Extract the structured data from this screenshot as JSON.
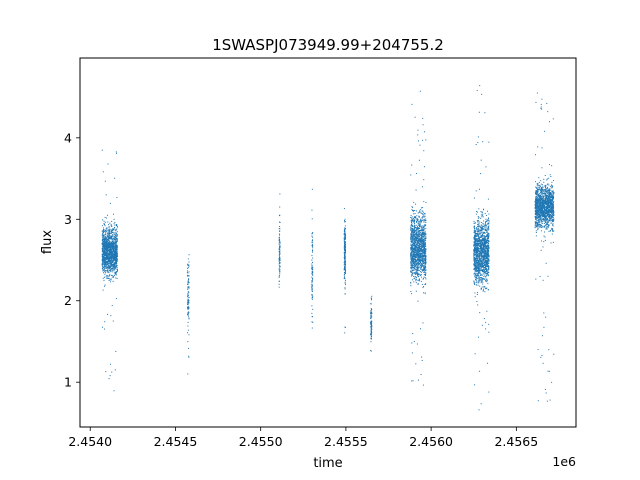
{
  "chart_data": {
    "type": "scatter",
    "title": "1SWASPJ073949.99+204755.2",
    "xlabel": "time",
    "ylabel": "flux",
    "x_offset_label": "1e6",
    "x_ticks": [
      "2.4540",
      "2.4545",
      "2.4550",
      "2.4555",
      "2.4560",
      "2.4565"
    ],
    "y_ticks": [
      "1",
      "2",
      "3",
      "4"
    ],
    "x_tick_values": [
      2454000,
      2454500,
      2455000,
      2455500,
      2456000,
      2456500
    ],
    "y_tick_values": [
      1,
      2,
      3,
      4
    ],
    "xlim": [
      2453940,
      2456850
    ],
    "ylim": [
      0.45,
      4.98
    ],
    "grid": false,
    "legend": "none",
    "point_color": "#1f77b4",
    "series": [
      {
        "clusters": [
          {
            "x_range": [
              2454070,
              2454160
            ],
            "y_center": 2.6,
            "y_spread": 0.25,
            "y_min": 0.85,
            "y_max": 3.95,
            "density": "high"
          },
          {
            "x_range": [
              2454570,
              2454580
            ],
            "y_center": 2.1,
            "y_spread": 0.4,
            "y_min": 1.1,
            "y_max": 2.8,
            "density": "low"
          },
          {
            "x_range": [
              2455108,
              2455114
            ],
            "y_center": 2.6,
            "y_spread": 0.35,
            "y_min": 1.75,
            "y_max": 3.4,
            "density": "low"
          },
          {
            "x_range": [
              2455300,
              2455306
            ],
            "y_center": 2.4,
            "y_spread": 0.45,
            "y_min": 1.35,
            "y_max": 3.45,
            "density": "low"
          },
          {
            "x_range": [
              2455490,
              2455498
            ],
            "y_center": 2.6,
            "y_spread": 0.3,
            "y_min": 1.3,
            "y_max": 3.3,
            "density": "medium"
          },
          {
            "x_range": [
              2455645,
              2455652
            ],
            "y_center": 1.75,
            "y_spread": 0.25,
            "y_min": 1.3,
            "y_max": 2.15,
            "density": "low"
          },
          {
            "x_range": [
              2455880,
              2455970
            ],
            "y_center": 2.65,
            "y_spread": 0.35,
            "y_min": 0.65,
            "y_max": 4.75,
            "density": "high"
          },
          {
            "x_range": [
              2456250,
              2456340
            ],
            "y_center": 2.6,
            "y_spread": 0.35,
            "y_min": 0.65,
            "y_max": 4.68,
            "density": "high"
          },
          {
            "x_range": [
              2456610,
              2456720
            ],
            "y_center": 3.15,
            "y_spread": 0.22,
            "y_min": 0.7,
            "y_max": 4.58,
            "density": "high"
          }
        ]
      }
    ]
  }
}
